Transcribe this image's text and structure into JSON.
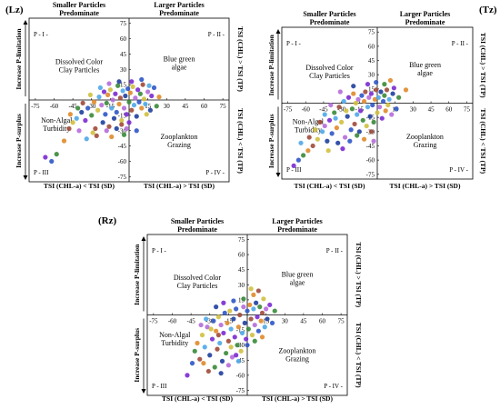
{
  "chart_data": [
    {
      "type": "scatter",
      "tag": "(Lz)",
      "xlabel_left": "TSI (CHL-a) < TSI (SD)",
      "xlabel_right": "TSI (CHL-a) > TSI (SD)",
      "ylabel_top": "Increase P-limitation",
      "ylabel_bottom": "Increase P-surplus",
      "right_label_top": "TSI (CHL) > TSI (TP)",
      "right_label_bottom": "TSI (CHL) < TSI (TP)",
      "header_left": [
        "Smaller Particles",
        "Predominate"
      ],
      "header_right": [
        "Larger Particles",
        "Predominate"
      ],
      "quadrants": [
        "P - I -",
        "P - II -",
        "P - III",
        "P - IV -"
      ],
      "regions": [
        [
          "Dissolved Color",
          "Clay Particles"
        ],
        [
          "Blue green",
          "algae"
        ],
        [
          "Non-Algal",
          "Turbidity"
        ],
        [
          "Zooplankton",
          "Grazing"
        ]
      ],
      "xticks": [
        -75,
        -60,
        -45,
        -30,
        -15,
        15,
        30,
        45,
        60,
        75
      ],
      "yticks": [
        75,
        60,
        45,
        30,
        15,
        -15,
        -30,
        -45,
        -60,
        -75
      ],
      "xlim": [
        -80,
        80
      ],
      "ylim": [
        -80,
        80
      ],
      "colors": [
        "#7a2ad0",
        "#2f56c8",
        "#3a8a3a",
        "#e08a2a",
        "#a04a3a",
        "#d0c040",
        "#4fa7e8",
        "#b56bd9",
        "#1f3f9f"
      ],
      "points": [
        [
          -67,
          -56
        ],
        [
          -62,
          -60
        ],
        [
          -58,
          -53
        ],
        [
          -52,
          -40
        ],
        [
          -48,
          -28
        ],
        [
          -45,
          -22
        ],
        [
          -42,
          -18
        ],
        [
          -40,
          -30
        ],
        [
          -38,
          -12
        ],
        [
          -35,
          -20
        ],
        [
          -33,
          -8
        ],
        [
          -30,
          -15
        ],
        [
          -28,
          -2
        ],
        [
          -27,
          -28
        ],
        [
          -25,
          -10
        ],
        [
          -24,
          3
        ],
        [
          -22,
          -5
        ],
        [
          -21,
          -22
        ],
        [
          -20,
          8
        ],
        [
          -19,
          -14
        ],
        [
          -18,
          -3
        ],
        [
          -17,
          5
        ],
        [
          -16,
          -26
        ],
        [
          -15,
          10
        ],
        [
          -14,
          -8
        ],
        [
          -13,
          0
        ],
        [
          -12,
          -18
        ],
        [
          -11,
          6
        ],
        [
          -10,
          -12
        ],
        [
          -9,
          14
        ],
        [
          -8,
          -4
        ],
        [
          -7,
          2
        ],
        [
          -6,
          -20
        ],
        [
          -5,
          9
        ],
        [
          -4,
          -8
        ],
        [
          -3,
          4
        ],
        [
          -2,
          -14
        ],
        [
          -1,
          11
        ],
        [
          0,
          -2
        ],
        [
          1,
          7
        ],
        [
          2,
          -10
        ],
        [
          3,
          13
        ],
        [
          4,
          -5
        ],
        [
          5,
          2
        ],
        [
          6,
          -16
        ],
        [
          7,
          10
        ],
        [
          8,
          -2
        ],
        [
          9,
          6
        ],
        [
          10,
          -8
        ],
        [
          11,
          15
        ],
        [
          12,
          1
        ],
        [
          13,
          -4
        ],
        [
          15,
          8
        ],
        [
          17,
          -10
        ],
        [
          18,
          4
        ],
        [
          20,
          12
        ],
        [
          22,
          -6
        ],
        [
          24,
          3
        ],
        [
          -26,
          -35
        ],
        [
          -29,
          -32
        ],
        [
          -34,
          -38
        ],
        [
          -18,
          -30
        ],
        [
          -10,
          -28
        ],
        [
          0,
          -22
        ],
        [
          6,
          -30
        ],
        [
          -4,
          -34
        ],
        [
          -14,
          -36
        ],
        [
          -37,
          -3
        ],
        [
          -31,
          5
        ],
        [
          -23,
          12
        ],
        [
          -16,
          16
        ],
        [
          -8,
          18
        ],
        [
          2,
          18
        ],
        [
          10,
          20
        ],
        [
          -41,
          -8
        ],
        [
          -47,
          -14
        ],
        [
          -6,
          -24
        ],
        [
          14,
          -14
        ],
        [
          16,
          14
        ],
        [
          -2,
          -28
        ]
      ]
    },
    {
      "type": "scatter",
      "tag": "(Tz)",
      "xlabel_left": "TSI (CHL-a) < TSI (SD)",
      "xlabel_right": "TSI (CHL-a) > TSI (SD)",
      "ylabel_top": "Increase P-limitation",
      "ylabel_bottom": "Increase P-surplus",
      "right_label_top": "TSI (CHL) > TSI (TP)",
      "right_label_bottom": "TSI (CHL) < TSI (TP)",
      "header_left": [
        "Smaller Particles",
        "Predominate"
      ],
      "header_right": [
        "Larger Particles",
        "Predominate"
      ],
      "quadrants": [
        "P - I -",
        "P - II -",
        "P - III",
        "P - IV -"
      ],
      "regions": [
        [
          "Dissolved Color",
          "Clay Particles"
        ],
        [
          "Blue green",
          "algae"
        ],
        [
          "Non-Algal",
          "Turbidity"
        ],
        [
          "Zooplankton",
          "Grazing"
        ]
      ],
      "xticks": [
        -75,
        -60,
        -45,
        -30,
        -15,
        15,
        30,
        45,
        60,
        75
      ],
      "yticks": [
        75,
        60,
        45,
        30,
        15,
        -15,
        -30,
        -45,
        -60,
        -75
      ],
      "xlim": [
        -80,
        80
      ],
      "ylim": [
        -80,
        80
      ],
      "colors": [
        "#7a2ad0",
        "#2f56c8",
        "#3a8a3a",
        "#e08a2a",
        "#a04a3a",
        "#d0c040",
        "#4fa7e8",
        "#b56bd9",
        "#1f3f9f"
      ],
      "points": [
        [
          -70,
          -66
        ],
        [
          -66,
          -60
        ],
        [
          -62,
          -55
        ],
        [
          -58,
          -50
        ],
        [
          -54,
          -45
        ],
        [
          -50,
          -38
        ],
        [
          -46,
          -30
        ],
        [
          -44,
          -24
        ],
        [
          -42,
          -40
        ],
        [
          -40,
          -18
        ],
        [
          -38,
          -32
        ],
        [
          -36,
          -10
        ],
        [
          -34,
          -26
        ],
        [
          -32,
          -4
        ],
        [
          -30,
          -20
        ],
        [
          -28,
          2
        ],
        [
          -27,
          -36
        ],
        [
          -25,
          -14
        ],
        [
          -24,
          6
        ],
        [
          -22,
          -28
        ],
        [
          -21,
          -6
        ],
        [
          -20,
          10
        ],
        [
          -19,
          -22
        ],
        [
          -18,
          0
        ],
        [
          -17,
          -12
        ],
        [
          -16,
          4
        ],
        [
          -15,
          -30
        ],
        [
          -14,
          -8
        ],
        [
          -13,
          8
        ],
        [
          -12,
          -18
        ],
        [
          -11,
          2
        ],
        [
          -10,
          12
        ],
        [
          -9,
          -24
        ],
        [
          -8,
          -4
        ],
        [
          -7,
          6
        ],
        [
          -6,
          -14
        ],
        [
          -5,
          10
        ],
        [
          -4,
          -2
        ],
        [
          -3,
          -20
        ],
        [
          -2,
          4
        ],
        [
          -1,
          14
        ],
        [
          0,
          -10
        ],
        [
          1,
          6
        ],
        [
          2,
          -4
        ],
        [
          3,
          12
        ],
        [
          4,
          -16
        ],
        [
          5,
          2
        ],
        [
          6,
          8
        ],
        [
          7,
          -8
        ],
        [
          8,
          14
        ],
        [
          9,
          -2
        ],
        [
          10,
          4
        ],
        [
          12,
          -12
        ],
        [
          13,
          10
        ],
        [
          14,
          16
        ],
        [
          16,
          -6
        ],
        [
          18,
          6
        ],
        [
          24,
          14
        ],
        [
          -48,
          -20
        ],
        [
          -52,
          -28
        ],
        [
          -44,
          -12
        ],
        [
          -39,
          -2
        ],
        [
          -33,
          -42
        ],
        [
          -29,
          -48
        ],
        [
          -23,
          -40
        ],
        [
          -17,
          -34
        ],
        [
          -11,
          -38
        ],
        [
          -5,
          -30
        ],
        [
          -26,
          -8
        ],
        [
          -35,
          -16
        ],
        [
          -31,
          12
        ],
        [
          -20,
          18
        ],
        [
          -8,
          20
        ],
        [
          -1,
          22
        ],
        [
          6,
          20
        ],
        [
          11,
          24
        ],
        [
          -57,
          -36
        ],
        [
          -41,
          -50
        ],
        [
          -64,
          -42
        ],
        [
          -3,
          -40
        ]
      ]
    },
    {
      "type": "scatter",
      "tag": "(Rz)",
      "xlabel_left": "TSI (CHL-a) < TSI (SD)",
      "xlabel_right": "TSI (CHL-a) > TSI (SD)",
      "ylabel_top": "Increase P-limitation",
      "ylabel_bottom": "Increase P-surplus",
      "right_label_top": "TSI (CHL) > TSI (TP)",
      "right_label_bottom": "TSI (CHL) < TSI (TP)",
      "header_left": [
        "Smaller Particles",
        "Predominate"
      ],
      "header_right": [
        "Larger Particles",
        "Predominate"
      ],
      "quadrants": [
        "P - I -",
        "P - II -",
        "P - III",
        "P - IV -"
      ],
      "regions": [
        [
          "Dissolved Color",
          "Clay Particles"
        ],
        [
          "Blue green",
          "algae"
        ],
        [
          "Non-Algal",
          "Turbidity"
        ],
        [
          "Zooplankton",
          "Grazing"
        ]
      ],
      "xticks": [
        -75,
        -60,
        -45,
        -30,
        -15,
        15,
        30,
        45,
        60,
        75
      ],
      "yticks": [
        75,
        60,
        45,
        30,
        15,
        -15,
        -30,
        -45,
        -60,
        -75
      ],
      "xlim": [
        -80,
        80
      ],
      "ylim": [
        -80,
        80
      ],
      "colors": [
        "#7a2ad0",
        "#2f56c8",
        "#3a8a3a",
        "#e08a2a",
        "#a04a3a",
        "#d0c040",
        "#4fa7e8",
        "#b56bd9",
        "#1f3f9f"
      ],
      "points": [
        [
          -48,
          -60
        ],
        [
          -44,
          -48
        ],
        [
          -42,
          -36
        ],
        [
          -40,
          -28
        ],
        [
          -38,
          -44
        ],
        [
          -36,
          -20
        ],
        [
          -34,
          -32
        ],
        [
          -32,
          -12
        ],
        [
          -30,
          -40
        ],
        [
          -28,
          -24
        ],
        [
          -27,
          -6
        ],
        [
          -26,
          -52
        ],
        [
          -25,
          -16
        ],
        [
          -24,
          -34
        ],
        [
          -23,
          -2
        ],
        [
          -22,
          -28
        ],
        [
          -21,
          -10
        ],
        [
          -20,
          -46
        ],
        [
          -19,
          -18
        ],
        [
          -18,
          2
        ],
        [
          -17,
          -38
        ],
        [
          -16,
          -8
        ],
        [
          -15,
          -26
        ],
        [
          -14,
          4
        ],
        [
          -13,
          -14
        ],
        [
          -12,
          -42
        ],
        [
          -11,
          -4
        ],
        [
          -10,
          -22
        ],
        [
          -9,
          6
        ],
        [
          -8,
          -30
        ],
        [
          -7,
          -12
        ],
        [
          -6,
          0
        ],
        [
          -5,
          -36
        ],
        [
          -4,
          -18
        ],
        [
          -3,
          8
        ],
        [
          -2,
          -8
        ],
        [
          -1,
          -24
        ],
        [
          0,
          4
        ],
        [
          1,
          -14
        ],
        [
          2,
          10
        ],
        [
          3,
          -4
        ],
        [
          4,
          -20
        ],
        [
          5,
          6
        ],
        [
          6,
          -10
        ],
        [
          7,
          12
        ],
        [
          8,
          -2
        ],
        [
          9,
          -16
        ],
        [
          10,
          8
        ],
        [
          11,
          -6
        ],
        [
          12,
          2
        ],
        [
          13,
          16
        ],
        [
          14,
          -12
        ],
        [
          15,
          6
        ],
        [
          16,
          -4
        ],
        [
          18,
          10
        ],
        [
          20,
          -8
        ],
        [
          22,
          4
        ],
        [
          -35,
          -48
        ],
        [
          -31,
          -56
        ],
        [
          -29,
          -14
        ],
        [
          -33,
          -4
        ],
        [
          -37,
          -10
        ],
        [
          -25,
          8
        ],
        [
          -19,
          12
        ],
        [
          -11,
          14
        ],
        [
          -3,
          16
        ],
        [
          5,
          20
        ],
        [
          9,
          24
        ],
        [
          3,
          26
        ],
        [
          -7,
          -46
        ],
        [
          -15,
          -50
        ],
        [
          -21,
          -58
        ],
        [
          -9,
          -40
        ],
        [
          0,
          -30
        ],
        [
          6,
          -26
        ],
        [
          12,
          -22
        ],
        [
          -23,
          -20
        ],
        [
          -13,
          -32
        ]
      ]
    }
  ]
}
